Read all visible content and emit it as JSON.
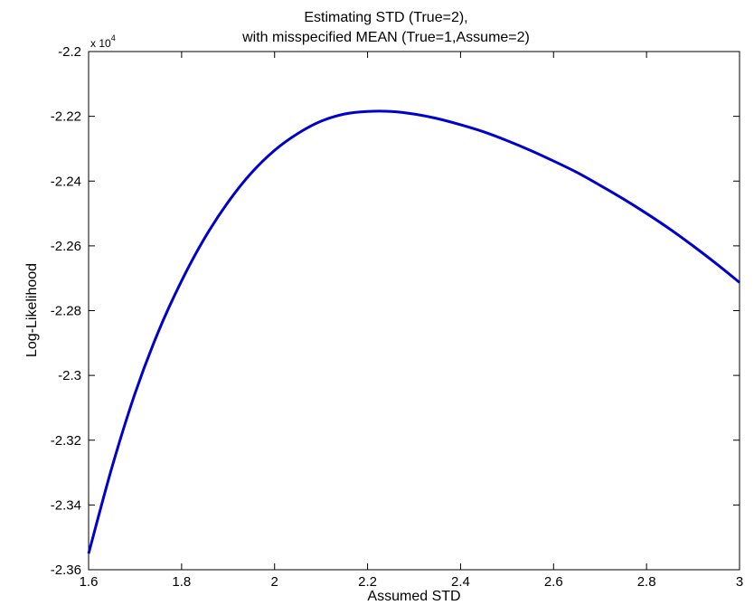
{
  "chart_data": {
    "type": "line",
    "title_line1": "Estimating STD (True=2),",
    "title_line2": "with misspecified MEAN (True=1,Assume=2)",
    "xlabel": "Assumed STD",
    "ylabel": "Log-Likelihood",
    "y_multiplier_base": "x 10",
    "y_multiplier_exp": "4",
    "xlim": [
      1.6,
      3.0
    ],
    "ylim": [
      -2.36,
      -2.2
    ],
    "x_ticks": [
      1.6,
      1.8,
      2.0,
      2.2,
      2.4,
      2.6,
      2.8,
      3.0
    ],
    "x_tick_labels": [
      "1.6",
      "1.8",
      "2",
      "2.2",
      "2.4",
      "2.6",
      "2.8",
      "3"
    ],
    "y_ticks": [
      -2.36,
      -2.34,
      -2.32,
      -2.3,
      -2.28,
      -2.26,
      -2.24,
      -2.22,
      -2.2
    ],
    "y_tick_labels": [
      "-2.36",
      "-2.34",
      "-2.32",
      "-2.3",
      "-2.28",
      "-2.26",
      "-2.24",
      "-2.22",
      "-2.2"
    ],
    "grid": false,
    "series": [
      {
        "color": "#0000cc",
        "x": [
          1.6,
          1.65,
          1.7,
          1.75,
          1.8,
          1.85,
          1.9,
          1.95,
          2.0,
          2.05,
          2.1,
          2.15,
          2.2,
          2.25,
          2.3,
          2.35,
          2.4,
          2.45,
          2.5,
          2.55,
          2.6,
          2.65,
          2.7,
          2.75,
          2.8,
          2.85,
          2.9,
          2.95,
          3.0
        ],
        "values": [
          -2.355,
          -2.3285,
          -2.3055,
          -2.2865,
          -2.2708,
          -2.2575,
          -2.2465,
          -2.2375,
          -2.2305,
          -2.2253,
          -2.2215,
          -2.2193,
          -2.2185,
          -2.2185,
          -2.2193,
          -2.2207,
          -2.2226,
          -2.2248,
          -2.2275,
          -2.2305,
          -2.2338,
          -2.2373,
          -2.2413,
          -2.2455,
          -2.25,
          -2.2548,
          -2.26,
          -2.2655,
          -2.2713
        ]
      }
    ]
  }
}
